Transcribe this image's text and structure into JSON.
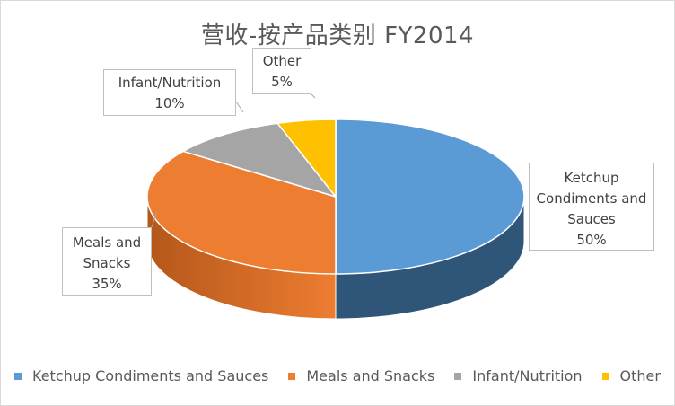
{
  "chart_data": {
    "type": "pie",
    "style": "3d",
    "title": "营收-按产品类别 FY2014",
    "categories": [
      "Ketchup Condiments and Sauces",
      "Meals and Snacks",
      "Infant/Nutrition",
      "Other"
    ],
    "values": [
      50,
      35,
      10,
      5
    ],
    "labels": [
      {
        "lines": [
          "Ketchup",
          "Condiments and",
          "Sauces"
        ],
        "percent": "50%"
      },
      {
        "lines": [
          "Meals and",
          "Snacks"
        ],
        "percent": "35%"
      },
      {
        "lines": [
          "Infant/Nutrition"
        ],
        "percent": "10%"
      },
      {
        "lines": [
          "Other"
        ],
        "percent": "5%"
      }
    ],
    "colors": [
      "#5b9bd5",
      "#ed7d31",
      "#a5a5a5",
      "#ffc000"
    ],
    "side_colors": [
      "#2f5578",
      "#b4571a",
      "#7a7a7a",
      "#bf9000"
    ],
    "legend_position": "bottom"
  }
}
